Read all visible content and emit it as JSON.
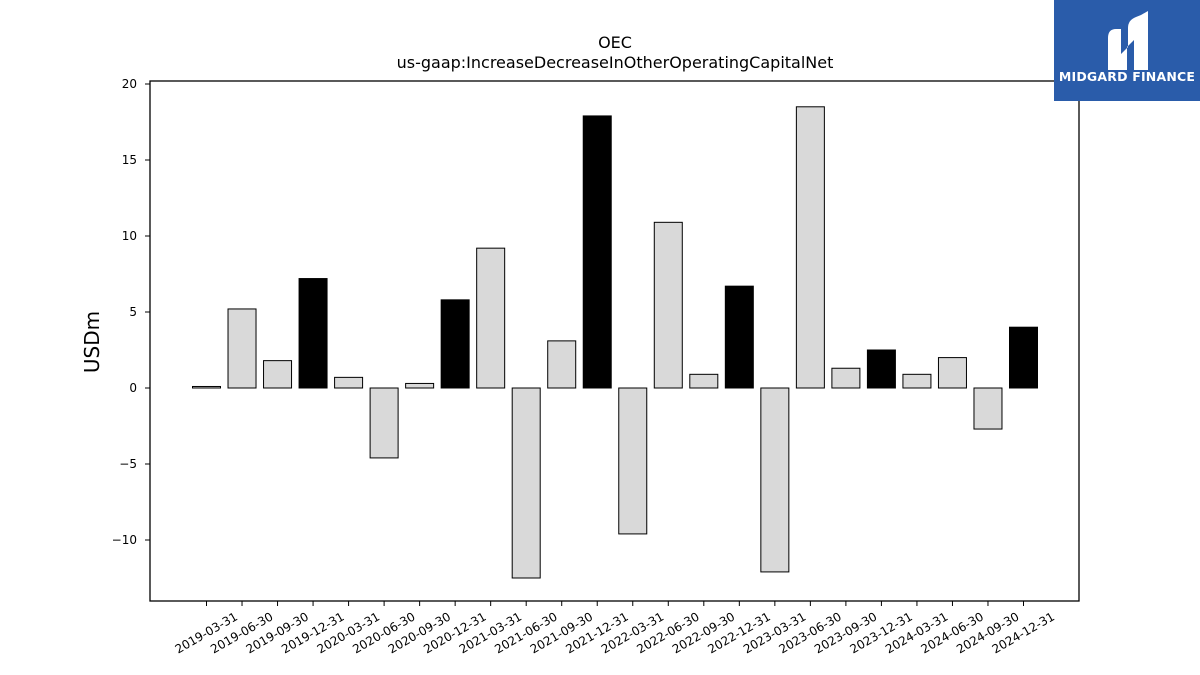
{
  "chart_data": {
    "type": "bar",
    "title": "OEC",
    "subtitle": "us-gaap:IncreaseDecreaseInOtherOperatingCapitalNet",
    "xlabel": "",
    "ylabel": "USDm",
    "ylim": [
      -14,
      20
    ],
    "yticks": [
      20,
      15,
      10,
      5,
      0,
      -5,
      -10
    ],
    "ytick_labels": [
      "20",
      "15",
      "10",
      "5",
      "0",
      "−5",
      "−10"
    ],
    "grid": false,
    "categories": [
      "2019-03-31",
      "2019-06-30",
      "2019-09-30",
      "2019-12-31",
      "2020-03-31",
      "2020-06-30",
      "2020-09-30",
      "2020-12-31",
      "2021-03-31",
      "2021-06-30",
      "2021-09-30",
      "2021-12-31",
      "2022-03-31",
      "2022-06-30",
      "2022-09-30",
      "2022-12-31",
      "2023-03-31",
      "2023-06-30",
      "2023-09-30",
      "2023-12-31",
      "2024-03-31",
      "2024-06-30",
      "2024-09-30",
      "2024-12-31"
    ],
    "values": [
      0.1,
      5.2,
      1.8,
      7.2,
      0.7,
      -4.6,
      0.3,
      5.8,
      9.2,
      -12.5,
      3.1,
      17.9,
      -9.6,
      10.9,
      0.9,
      6.7,
      -12.1,
      18.5,
      1.3,
      2.5,
      0.9,
      2.0,
      -2.7,
      4.0
    ],
    "colors": {
      "quarter": "#d9d9d9",
      "year_end": "#000000",
      "edge": "#000000"
    }
  },
  "logo": {
    "text": "MIDGARD FINANCE",
    "background": "#2a5caa"
  }
}
